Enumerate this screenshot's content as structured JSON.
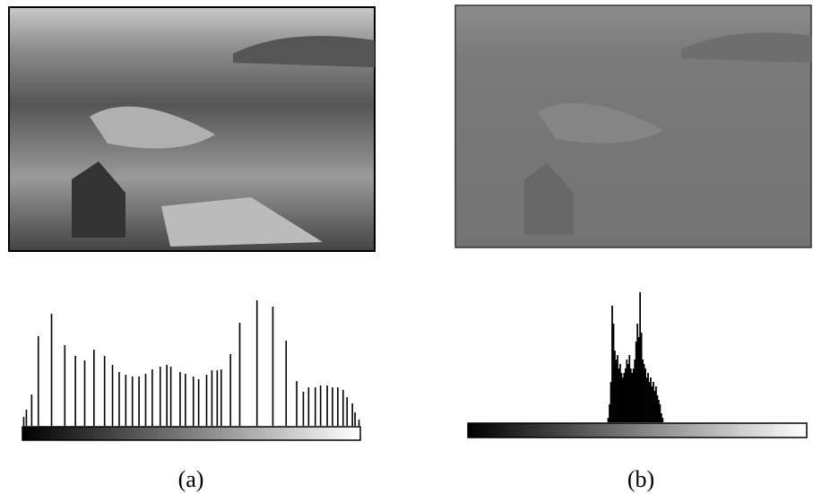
{
  "chart_data": [
    {
      "type": "histogram-lines",
      "caption": "(a)",
      "color": "#000000",
      "xlim": [
        0,
        255
      ],
      "ylim": [
        0,
        150
      ],
      "x": [
        1,
        3,
        7,
        12,
        22,
        32,
        40,
        47,
        54,
        62,
        68,
        73,
        78,
        83,
        88,
        93,
        98,
        104,
        109,
        112,
        119,
        123,
        129,
        133,
        139,
        143,
        147,
        150,
        157,
        164,
        177,
        189,
        199,
        207,
        212,
        216,
        221,
        225,
        230,
        234,
        238,
        242,
        245,
        249,
        251,
        254
      ],
      "values": [
        10,
        18,
        35,
        100,
        125,
        90,
        78,
        73,
        85,
        78,
        68,
        60,
        57,
        55,
        55,
        58,
        63,
        66,
        68,
        66,
        60,
        58,
        55,
        52,
        57,
        62,
        62,
        63,
        80,
        115,
        140,
        133,
        95,
        50,
        38,
        43,
        43,
        45,
        45,
        43,
        43,
        40,
        32,
        25,
        15,
        7
      ]
    },
    {
      "type": "histogram-dense",
      "caption": "(b)",
      "color": "#000000",
      "xlim": [
        0,
        255
      ],
      "ylim": [
        0,
        150
      ],
      "x": [
        105,
        106,
        107,
        108,
        109,
        110,
        111,
        112,
        113,
        114,
        115,
        116,
        117,
        118,
        119,
        120,
        121,
        122,
        123,
        124,
        125,
        126,
        127,
        128,
        129,
        130,
        131,
        132,
        133,
        134,
        135,
        136,
        137,
        138,
        139,
        140,
        141,
        142,
        143,
        144,
        145,
        146
      ],
      "values": [
        5,
        20,
        45,
        130,
        110,
        80,
        70,
        75,
        60,
        65,
        55,
        50,
        55,
        60,
        70,
        65,
        75,
        60,
        55,
        60,
        70,
        90,
        110,
        95,
        145,
        100,
        70,
        65,
        60,
        50,
        55,
        45,
        50,
        40,
        45,
        35,
        40,
        30,
        25,
        20,
        10,
        5
      ]
    }
  ]
}
